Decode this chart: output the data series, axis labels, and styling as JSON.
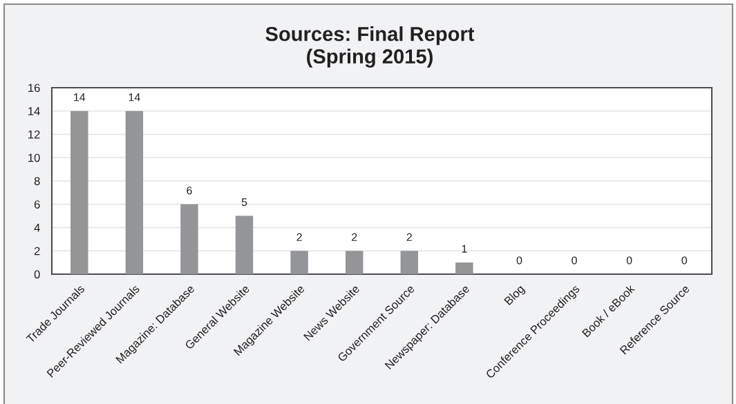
{
  "chart_data": {
    "type": "bar",
    "title": "Sources: Final Report\n(Spring 2015)",
    "categories": [
      "Trade Journals",
      "Peer-Reviewed Journals",
      "Magazine: Database",
      "General Website",
      "Magazine Website",
      "News Website",
      "Government Source",
      "Newspaper: Database",
      "Blog",
      "Conference Proceedings",
      "Book / eBook",
      "Reference Source"
    ],
    "values": [
      14,
      14,
      6,
      5,
      2,
      2,
      2,
      1,
      0,
      0,
      0,
      0
    ],
    "color": "#939598",
    "ylim": [
      0,
      16
    ],
    "yticks": [
      0,
      2,
      4,
      6,
      8,
      10,
      12,
      14,
      16
    ],
    "grid": "y",
    "data_labels": true
  }
}
